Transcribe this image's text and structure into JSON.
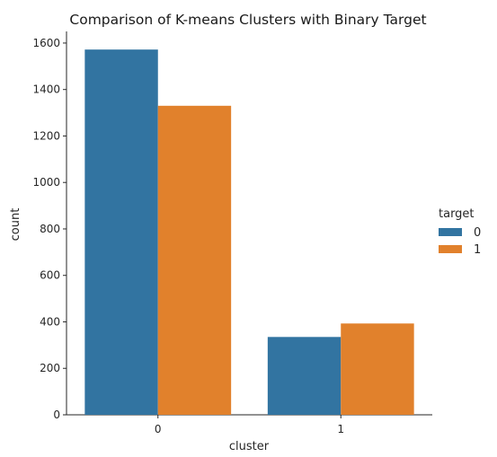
{
  "chart_data": {
    "type": "bar",
    "title": "Comparison of K-means Clusters with Binary Target",
    "xlabel": "cluster",
    "ylabel": "count",
    "categories": [
      "0",
      "1"
    ],
    "series": [
      {
        "name": "0",
        "values": [
          1572,
          335
        ],
        "color": "#3274a1"
      },
      {
        "name": "1",
        "values": [
          1330,
          393
        ],
        "color": "#e1812c"
      }
    ],
    "ylim": [
      0,
      1650
    ],
    "yticks": [
      0,
      200,
      400,
      600,
      800,
      1000,
      1200,
      1400,
      1600
    ],
    "legend": {
      "title": "target",
      "placement": "right"
    },
    "grid": false
  }
}
